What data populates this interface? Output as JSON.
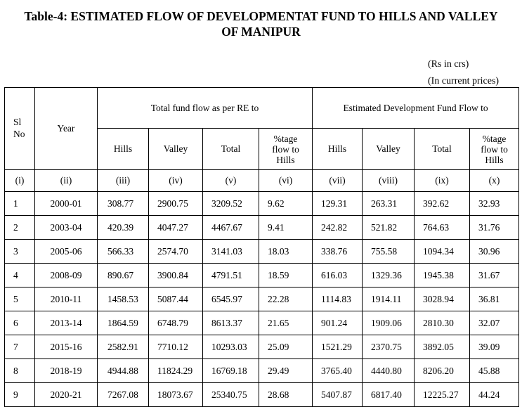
{
  "title": {
    "line1": "Table-4: ESTIMATED FLOW OF DEVELOPMENTAT FUND TO HILLS AND VALLEY",
    "line2": "OF MANIPUR"
  },
  "units": {
    "currency": "(Rs in crs)",
    "prices": "(In current prices)"
  },
  "table": {
    "headers": {
      "sl_no_line1": "Sl",
      "sl_no_line2": "No",
      "year": "Year",
      "group_re": "Total fund flow as per RE to",
      "group_est": "Estimated Development Fund Flow to",
      "hills": "Hills",
      "valley": "Valley",
      "total": "Total",
      "pct_line1": "%tage",
      "pct_line2": "flow to",
      "pct_line3": "Hills",
      "hills2": "Hills",
      "valley2": "Valley",
      "total2": "Total",
      "pct2_line1": "%tage",
      "pct2_line2": "flow to",
      "pct2_line3": "Hills"
    },
    "col_numbers": [
      "(i)",
      "(ii)",
      "(iii)",
      "(iv)",
      "(v)",
      "(vi)",
      "(vii)",
      "(viii)",
      "(ix)",
      "(x)"
    ],
    "rows": [
      [
        "1",
        "2000-01",
        "308.77",
        "2900.75",
        "3209.52",
        "9.62",
        "129.31",
        "263.31",
        "392.62",
        "32.93"
      ],
      [
        "2",
        "2003-04",
        "420.39",
        "4047.27",
        "4467.67",
        "9.41",
        "242.82",
        "521.82",
        "764.63",
        "31.76"
      ],
      [
        "3",
        "2005-06",
        "566.33",
        "2574.70",
        "3141.03",
        "18.03",
        "338.76",
        "755.58",
        "1094.34",
        "30.96"
      ],
      [
        "4",
        "2008-09",
        "890.67",
        "3900.84",
        "4791.51",
        "18.59",
        "616.03",
        "1329.36",
        "1945.38",
        "31.67"
      ],
      [
        "5",
        "2010-11",
        "1458.53",
        "5087.44",
        "6545.97",
        "22.28",
        "1114.83",
        "1914.11",
        "3028.94",
        "36.81"
      ],
      [
        "6",
        "2013-14",
        "1864.59",
        "6748.79",
        "8613.37",
        "21.65",
        "901.24",
        "1909.06",
        "2810.30",
        "32.07"
      ],
      [
        "7",
        "2015-16",
        "2582.91",
        "7710.12",
        "10293.03",
        "25.09",
        "1521.29",
        "2370.75",
        "3892.05",
        "39.09"
      ],
      [
        "8",
        "2018-19",
        "4944.88",
        "11824.29",
        "16769.18",
        "29.49",
        "3765.40",
        "4440.80",
        "8206.20",
        "45.88"
      ],
      [
        "9",
        "2020-21",
        "7267.08",
        "18073.67",
        "25340.75",
        "28.68",
        "5407.87",
        "6817.40",
        "12225.27",
        "44.24"
      ]
    ]
  }
}
